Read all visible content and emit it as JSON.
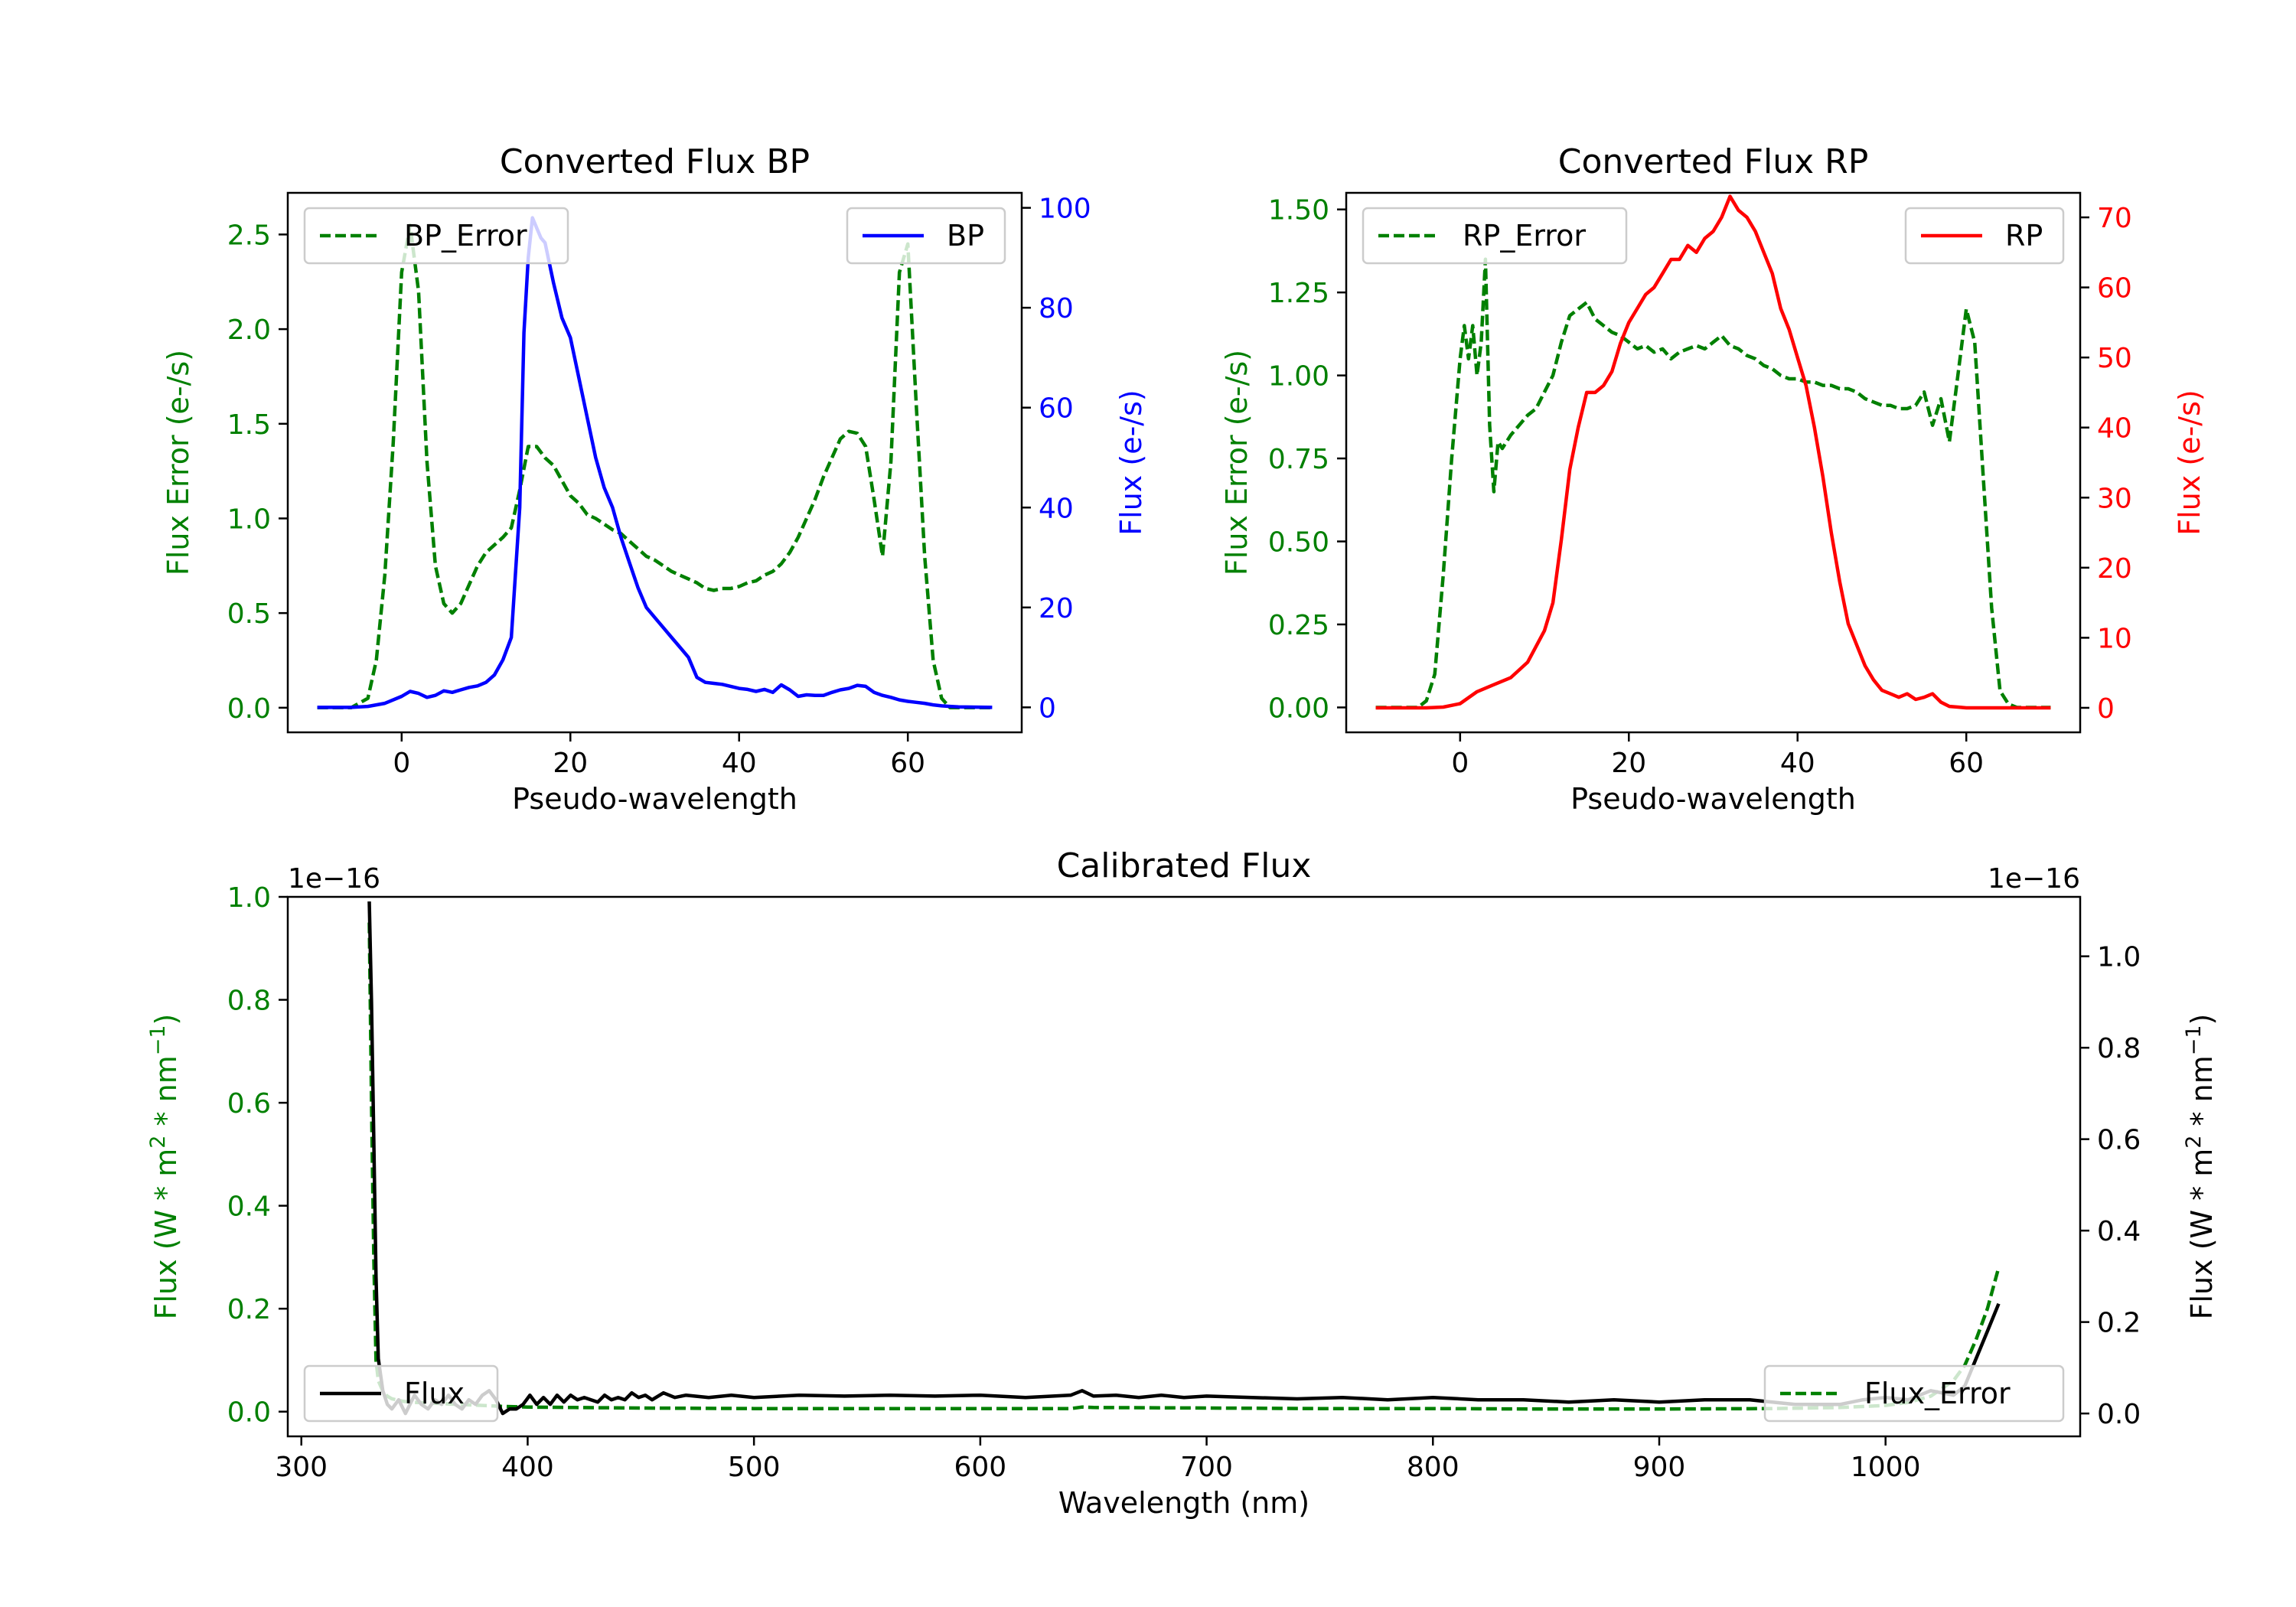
{
  "chart_data": [
    {
      "type": "line",
      "title": "Converted Flux BP",
      "xlabel": "Pseudo-wavelength",
      "ylabel_left": "Flux Error (e-/s)",
      "ylabel_right": "Flux (e-/s)",
      "xlim": [
        -13.5,
        73.5
      ],
      "ylim_left": [
        -0.13,
        2.72
      ],
      "ylim_right": [
        -5,
        103
      ],
      "xticks": [
        0,
        20,
        40,
        60
      ],
      "yticks_left": [
        "0.0",
        "0.5",
        "1.0",
        "1.5",
        "2.0",
        "2.5"
      ],
      "yticks_right": [
        "0",
        "20",
        "40",
        "60",
        "80",
        "100"
      ],
      "left_color": "#008000",
      "right_color": "#0000ff",
      "legend_left": "BP_Error",
      "legend_right": "BP",
      "series": [
        {
          "name": "BP_Error",
          "axis": "left",
          "style": "dashed",
          "color": "#008000",
          "x": [
            -10,
            -6,
            -4,
            -3,
            -2,
            -1,
            0,
            1,
            2,
            3,
            4,
            5,
            6,
            7,
            8,
            9,
            10,
            11,
            12,
            13,
            14,
            15,
            16,
            17,
            18,
            19,
            20,
            21,
            22,
            23,
            24,
            25,
            26,
            27,
            28,
            29,
            30,
            31,
            32,
            33,
            34,
            35,
            36,
            37,
            38,
            39,
            40,
            41,
            42,
            43,
            44,
            45,
            46,
            47,
            48,
            49,
            50,
            51,
            52,
            53,
            54,
            55,
            56,
            57,
            58,
            59,
            60,
            61,
            62,
            63,
            64,
            65,
            66,
            70
          ],
          "values": [
            0,
            0,
            0.05,
            0.25,
            0.7,
            1.4,
            2.3,
            2.55,
            2.2,
            1.3,
            0.75,
            0.55,
            0.5,
            0.55,
            0.65,
            0.75,
            0.82,
            0.86,
            0.9,
            0.95,
            1.15,
            1.38,
            1.38,
            1.32,
            1.28,
            1.2,
            1.12,
            1.08,
            1.02,
            1.0,
            0.97,
            0.94,
            0.92,
            0.88,
            0.84,
            0.8,
            0.78,
            0.75,
            0.72,
            0.7,
            0.68,
            0.66,
            0.63,
            0.62,
            0.63,
            0.63,
            0.64,
            0.66,
            0.67,
            0.7,
            0.72,
            0.76,
            0.82,
            0.9,
            1.0,
            1.1,
            1.22,
            1.32,
            1.42,
            1.46,
            1.45,
            1.38,
            1.1,
            0.8,
            1.3,
            2.3,
            2.45,
            1.6,
            0.8,
            0.25,
            0.05,
            0,
            0,
            0
          ]
        },
        {
          "name": "BP",
          "axis": "right",
          "style": "solid",
          "color": "#0000ff",
          "x": [
            -10,
            -6,
            -4,
            -2,
            0,
            1,
            2,
            3,
            4,
            5,
            6,
            7,
            8,
            9,
            10,
            11,
            12,
            13,
            14,
            14.5,
            15,
            15.5,
            16,
            16.5,
            17,
            18,
            19,
            20,
            21,
            22,
            23,
            24,
            25,
            26,
            27,
            28,
            29,
            30,
            31,
            32,
            33,
            34,
            35,
            36,
            37,
            38,
            39,
            40,
            41,
            42,
            43,
            44,
            45,
            46,
            47,
            48,
            49,
            50,
            51,
            52,
            53,
            54,
            55,
            56,
            57,
            58,
            59,
            60,
            61,
            62,
            63,
            64,
            65,
            66,
            70
          ],
          "values": [
            0,
            0,
            0.2,
            0.8,
            2.2,
            3.2,
            2.8,
            2,
            2.4,
            3.3,
            3,
            3.5,
            4,
            4.3,
            5,
            6.5,
            9.5,
            14,
            40,
            75,
            90,
            98,
            96,
            94,
            93,
            85,
            78,
            74,
            66,
            58,
            50,
            44,
            40,
            34,
            29,
            24,
            20,
            18,
            16,
            14,
            12,
            10,
            6,
            5,
            4.8,
            4.6,
            4.2,
            3.8,
            3.6,
            3.2,
            3.6,
            3,
            4.5,
            3.5,
            2.2,
            2.5,
            2.4,
            2.4,
            3,
            3.5,
            3.8,
            4.4,
            4.2,
            3,
            2.4,
            2,
            1.5,
            1.2,
            1,
            0.8,
            0.5,
            0.3,
            0.2,
            0.1,
            0
          ]
        }
      ]
    },
    {
      "type": "line",
      "title": "Converted Flux RP",
      "xlabel": "Pseudo-wavelength",
      "ylabel_left": "Flux Error (e-/s)",
      "ylabel_right": "Flux (e-/s)",
      "xlim": [
        -13.5,
        73.5
      ],
      "ylim_left": [
        -0.075,
        1.55
      ],
      "ylim_right": [
        -3.5,
        73.5
      ],
      "xticks": [
        0,
        20,
        40,
        60
      ],
      "yticks_left": [
        "0.00",
        "0.25",
        "0.50",
        "0.75",
        "1.00",
        "1.25",
        "1.50"
      ],
      "yticks_right": [
        "0",
        "10",
        "20",
        "30",
        "40",
        "50",
        "60",
        "70"
      ],
      "left_color": "#008000",
      "right_color": "#ff0000",
      "legend_left": "RP_Error",
      "legend_right": "RP",
      "series": [
        {
          "name": "RP_Error",
          "axis": "left",
          "style": "dashed",
          "color": "#008000",
          "x": [
            -10,
            -5,
            -4,
            -3,
            -2,
            -1,
            0,
            0.5,
            1,
            1.5,
            2,
            2.5,
            3,
            3.5,
            4,
            4.5,
            5,
            6,
            7,
            8,
            9,
            10,
            11,
            12,
            13,
            14,
            15,
            16,
            17,
            18,
            19,
            20,
            21,
            22,
            23,
            24,
            25,
            26,
            27,
            28,
            29,
            30,
            31,
            32,
            33,
            34,
            35,
            36,
            37,
            38,
            39,
            40,
            41,
            42,
            43,
            44,
            45,
            46,
            47,
            48,
            49,
            50,
            51,
            52,
            53,
            54,
            55,
            56,
            57,
            58,
            59,
            60,
            61,
            62,
            63,
            64,
            65,
            66,
            70
          ],
          "values": [
            0,
            0,
            0.02,
            0.1,
            0.4,
            0.75,
            1.05,
            1.15,
            1.05,
            1.15,
            1.0,
            1.1,
            1.35,
            0.85,
            0.65,
            0.8,
            0.78,
            0.82,
            0.85,
            0.88,
            0.9,
            0.95,
            1.0,
            1.1,
            1.18,
            1.2,
            1.22,
            1.17,
            1.15,
            1.13,
            1.12,
            1.1,
            1.08,
            1.09,
            1.07,
            1.08,
            1.05,
            1.07,
            1.08,
            1.09,
            1.08,
            1.1,
            1.12,
            1.09,
            1.08,
            1.06,
            1.05,
            1.03,
            1.02,
            1.0,
            0.99,
            0.99,
            0.98,
            0.98,
            0.97,
            0.97,
            0.96,
            0.96,
            0.95,
            0.93,
            0.92,
            0.91,
            0.91,
            0.9,
            0.9,
            0.91,
            0.95,
            0.85,
            0.93,
            0.8,
            1.0,
            1.2,
            1.1,
            0.7,
            0.3,
            0.05,
            0.01,
            0,
            0
          ]
        },
        {
          "name": "RP",
          "axis": "right",
          "style": "solid",
          "color": "#ff0000",
          "x": [
            -10,
            -6,
            -4,
            -2,
            0,
            2,
            4,
            6,
            8,
            10,
            11,
            12,
            13,
            14,
            15,
            16,
            17,
            18,
            19,
            20,
            21,
            22,
            23,
            24,
            25,
            26,
            27,
            28,
            29,
            30,
            31,
            32,
            33,
            34,
            35,
            36,
            37,
            38,
            39,
            40,
            41,
            42,
            43,
            44,
            45,
            46,
            47,
            48,
            49,
            50,
            51,
            52,
            53,
            54,
            55,
            56,
            57,
            58,
            59,
            60,
            61,
            62,
            63,
            64,
            65,
            66,
            70
          ],
          "values": [
            0,
            0,
            0,
            0.1,
            0.6,
            2.3,
            3.3,
            4.3,
            6.5,
            11,
            15,
            24,
            34,
            40,
            45,
            45,
            46,
            48,
            52,
            55,
            57,
            59,
            60,
            62,
            64,
            64,
            66,
            65,
            67,
            68,
            70,
            73,
            71,
            70,
            68,
            65,
            62,
            57,
            54,
            50,
            46,
            40,
            33,
            25,
            18,
            12,
            9,
            6,
            4,
            2.5,
            2,
            1.5,
            2,
            1.2,
            1.5,
            2,
            0.8,
            0.2,
            0.1,
            0,
            0,
            0,
            0,
            0,
            0,
            0,
            0
          ]
        }
      ]
    },
    {
      "type": "line",
      "title": "Calibrated Flux",
      "xlabel": "Wavelength (nm)",
      "ylabel_left_main": "Flux (W * m",
      "ylabel_left_sup": "2",
      "ylabel_left_mid": " * nm",
      "ylabel_left_sup2": "−1",
      "ylabel_left_end": ")",
      "ylabel_right_main": "Flux (W * m",
      "ylabel_right_sup": "2",
      "ylabel_right_mid": " * nm",
      "ylabel_right_sup2": "−1",
      "ylabel_right_end": ")",
      "offset_left": "1e−16",
      "offset_right": "1e−16",
      "xlim": [
        294,
        1086
      ],
      "ylim_left": [
        -0.048,
        1.0
      ],
      "ylim_right": [
        -0.05,
        1.13
      ],
      "xticks": [
        300,
        400,
        500,
        600,
        700,
        800,
        900,
        1000
      ],
      "yticks_left": [
        "0.0",
        "0.2",
        "0.4",
        "0.6",
        "0.8",
        "1.0"
      ],
      "yticks_right": [
        "0.0",
        "0.2",
        "0.4",
        "0.6",
        "0.8",
        "1.0"
      ],
      "left_color": "#008000",
      "right_color": "#000000",
      "legend_left": "Flux",
      "legend_right": "Flux_Error",
      "series": [
        {
          "name": "Flux_Error",
          "axis": "left",
          "style": "dashed",
          "color": "#008000",
          "x": [
            330,
            331,
            332,
            333,
            334,
            336,
            338,
            340,
            345,
            350,
            355,
            360,
            365,
            370,
            375,
            380,
            385,
            390,
            400,
            420,
            450,
            500,
            550,
            600,
            640,
            645,
            650,
            700,
            750,
            800,
            850,
            900,
            950,
            980,
            1000,
            1010,
            1020,
            1030,
            1035,
            1040,
            1045,
            1050
          ],
          "values": [
            0.95,
            0.6,
            0.3,
            0.1,
            0.06,
            0.04,
            0.03,
            0.025,
            0.02,
            0.018,
            0.017,
            0.016,
            0.015,
            0.014,
            0.013,
            0.012,
            0.011,
            0.01,
            0.009,
            0.008,
            0.007,
            0.006,
            0.006,
            0.006,
            0.006,
            0.009,
            0.008,
            0.007,
            0.006,
            0.006,
            0.005,
            0.005,
            0.006,
            0.008,
            0.012,
            0.018,
            0.03,
            0.06,
            0.09,
            0.14,
            0.2,
            0.28
          ]
        },
        {
          "name": "Flux",
          "axis": "right",
          "style": "solid",
          "color": "#000000",
          "x": [
            330,
            331,
            332,
            333,
            334,
            336,
            338,
            340,
            343,
            346,
            350,
            353,
            356,
            359,
            362,
            365,
            368,
            371,
            374,
            377,
            380,
            383,
            386,
            389,
            392,
            395,
            398,
            401,
            404,
            407,
            410,
            413,
            416,
            419,
            422,
            425,
            428,
            431,
            434,
            437,
            440,
            443,
            446,
            449,
            452,
            455,
            460,
            465,
            470,
            480,
            490,
            500,
            520,
            540,
            560,
            580,
            600,
            620,
            640,
            645,
            650,
            660,
            670,
            680,
            690,
            700,
            720,
            740,
            760,
            780,
            800,
            820,
            840,
            860,
            880,
            900,
            920,
            940,
            960,
            980,
            990,
            1000,
            1010,
            1020,
            1030,
            1035,
            1040,
            1045,
            1050
          ],
          "values": [
            1.12,
            0.9,
            0.6,
            0.3,
            0.12,
            0.05,
            0.02,
            0.01,
            0.03,
            0.0,
            0.04,
            0.02,
            0.01,
            0.03,
            0.02,
            0.04,
            0.02,
            0.01,
            0.03,
            0.02,
            0.04,
            0.05,
            0.03,
            0.0,
            0.01,
            0.01,
            0.02,
            0.04,
            0.02,
            0.035,
            0.02,
            0.04,
            0.025,
            0.04,
            0.03,
            0.035,
            0.03,
            0.025,
            0.04,
            0.03,
            0.035,
            0.03,
            0.045,
            0.035,
            0.04,
            0.03,
            0.045,
            0.035,
            0.04,
            0.035,
            0.04,
            0.035,
            0.04,
            0.038,
            0.04,
            0.038,
            0.04,
            0.035,
            0.04,
            0.05,
            0.038,
            0.04,
            0.035,
            0.04,
            0.035,
            0.038,
            0.035,
            0.032,
            0.035,
            0.03,
            0.035,
            0.03,
            0.03,
            0.025,
            0.03,
            0.025,
            0.03,
            0.03,
            0.02,
            0.02,
            0.03,
            0.035,
            0.03,
            0.05,
            0.04,
            0.06,
            0.12,
            0.18,
            0.24
          ]
        }
      ]
    }
  ]
}
